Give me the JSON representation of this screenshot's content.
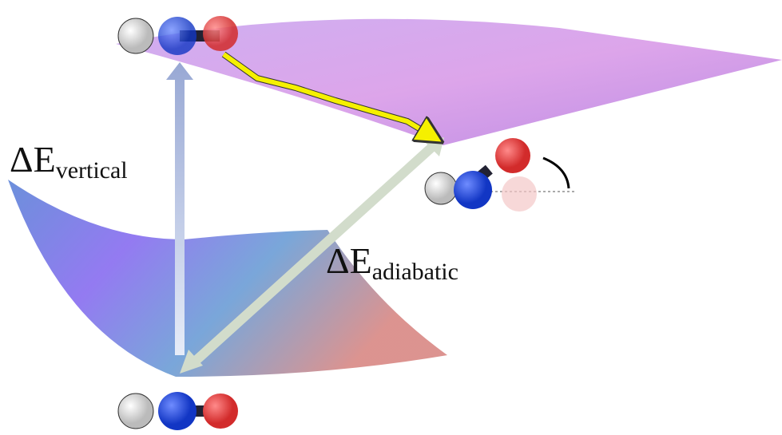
{
  "labels": [
    {
      "main": "ΔE",
      "sub": "vertical"
    },
    {
      "main": "ΔE",
      "sub": "adiabatic"
    }
  ]
}
